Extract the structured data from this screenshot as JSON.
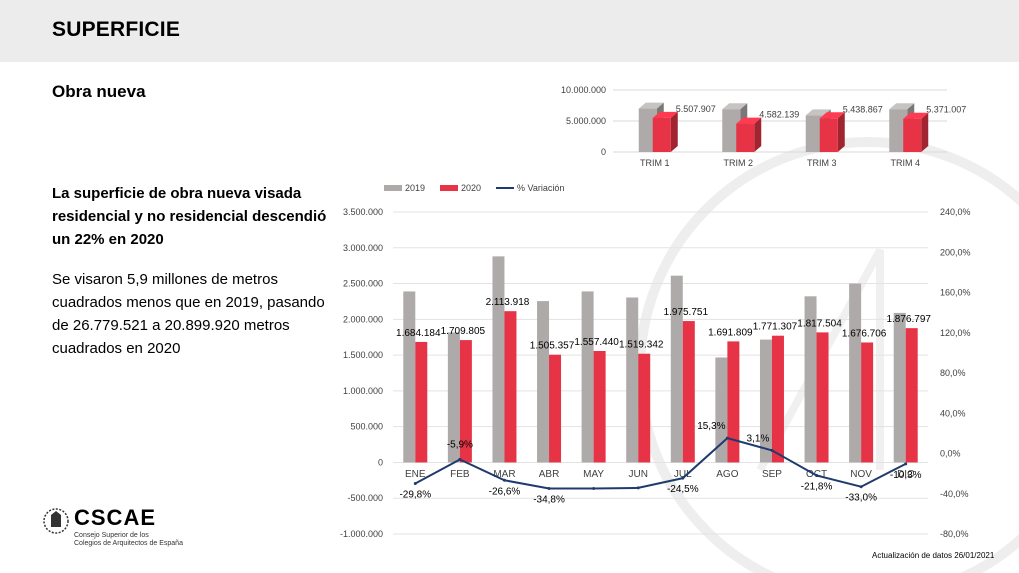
{
  "page": {
    "title": "SUPERFICIE",
    "subtitle": "Obra nueva",
    "headline": "La superficie de obra nueva visada residencial y no residencial descendió un 22% en 2020",
    "body": "Se visaron 5,9 millones de metros cuadrados menos que en 2019, pasando de 26.779.521 a 20.899.920 metros cuadrados en 2020",
    "footnote": "Actualización de datos 26/01/2021"
  },
  "logo": {
    "name": "CSCAE",
    "line1": "Consejo Superior de los",
    "line2": "Colegios de Arquitectos de España"
  },
  "colors": {
    "series2019": "#aeaaaa",
    "series2020": "#e63346",
    "variation": "#1f3b6e",
    "header_bg": "#ececec"
  },
  "chart_data": [
    {
      "type": "bar",
      "style": "3d-clustered",
      "categories": [
        "TRIM 1",
        "TRIM 2",
        "TRIM 3",
        "TRIM 4"
      ],
      "series": [
        {
          "name": "2019",
          "values": [
            7000000,
            6900000,
            5900000,
            6900000
          ]
        },
        {
          "name": "2020",
          "values": [
            5507907,
            4582139,
            5438867,
            5371007
          ],
          "labels": [
            "5.507.907",
            "4.582.139",
            "5.438.867",
            "5.371.007"
          ]
        }
      ],
      "ylim": [
        0,
        10000000
      ],
      "yticks": [
        "0",
        "5.000.000",
        "10.000.000"
      ],
      "grid": true
    },
    {
      "type": "bar",
      "combo": "bar+line",
      "categories": [
        "ENE",
        "FEB",
        "MAR",
        "ABR",
        "MAY",
        "JUN",
        "JUL",
        "AGO",
        "SEP",
        "OCT",
        "NOV",
        "DIC"
      ],
      "series": [
        {
          "name": "2019",
          "values": [
            2390000,
            1817000,
            2880000,
            2255000,
            2390000,
            2305000,
            2610000,
            1467000,
            1717000,
            2322000,
            2500000,
            2090000
          ]
        },
        {
          "name": "2020",
          "values": [
            1684184,
            1709805,
            2113918,
            1505357,
            1557440,
            1519342,
            1975751,
            1691809,
            1771307,
            1817504,
            1676706,
            1876797
          ],
          "labels": [
            "1.684.184",
            "1.709.805",
            "2.113.918",
            "1.505.357",
            "1.557.440",
            "1.519.342",
            "1.975.751",
            "1.691.809",
            "1.771.307",
            "1.817.504",
            "1.676.706",
            "1.876.797"
          ]
        },
        {
          "name": "% Variación",
          "type": "line",
          "axis": "right",
          "values": [
            -29.8,
            -5.9,
            -26.6,
            -34.8,
            -34.8,
            -34.2,
            -24.5,
            15.3,
            3.1,
            -21.8,
            -33.0,
            -10.3
          ],
          "labels": [
            "-29,8%",
            "-5,9%",
            "-26,6%",
            "-34,8%",
            "",
            "",
            "-24,5%",
            "15,3%",
            "3,1%",
            "-21,8%",
            "-33,0%",
            "-10,3%"
          ]
        }
      ],
      "ylim": [
        -1000000,
        3500000
      ],
      "yticks": [
        "3.500.000",
        "3.000.000",
        "2.500.000",
        "2.000.000",
        "1.500.000",
        "1.000.000",
        "500.000",
        "0",
        "-500.000",
        "-1.000.000"
      ],
      "y2lim": [
        -80,
        240
      ],
      "y2ticks": [
        "240,0%",
        "200,0%",
        "160,0%",
        "120,0%",
        "80,0%",
        "40,0%",
        "0,0%",
        "-40,0%",
        "-80,0%"
      ],
      "legend": [
        "2019",
        "2020",
        "% Variación"
      ],
      "legend_position": "top-left",
      "grid": true
    }
  ]
}
